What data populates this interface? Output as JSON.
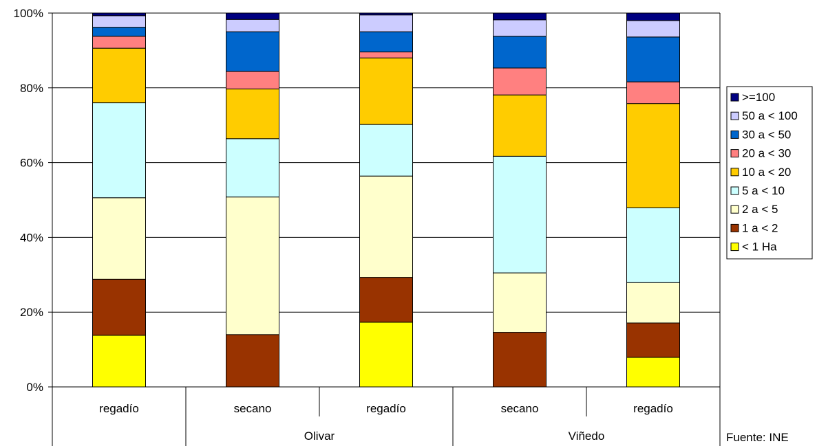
{
  "chart_data": {
    "type": "bar",
    "stacked": true,
    "percent": true,
    "title": "",
    "xlabel": "",
    "ylabel": "",
    "ylim": [
      0,
      100
    ],
    "y_ticks": [
      "0%",
      "20%",
      "40%",
      "60%",
      "80%",
      "100%"
    ],
    "grid": true,
    "legend_position": "right",
    "categories": [
      "regadío",
      "secano",
      "regadío",
      "secano",
      "regadío"
    ],
    "groups": [
      {
        "label": "",
        "categories": [
          "regadío"
        ]
      },
      {
        "label": "Olivar",
        "categories": [
          "secano",
          "regadío"
        ]
      },
      {
        "label": "Viñedo",
        "categories": [
          "secano",
          "regadío"
        ]
      }
    ],
    "series": [
      {
        "name": "< 1 Ha",
        "color": "#FFFF00",
        "values": [
          13.8,
          0,
          17.3,
          0,
          7.9
        ]
      },
      {
        "name": "1  a < 2",
        "color": "#993300",
        "values": [
          15.0,
          14.0,
          12.0,
          14.6,
          9.2
        ]
      },
      {
        "name": "2 a < 5",
        "color": "#FFFFCC",
        "values": [
          21.8,
          36.8,
          27.1,
          15.9,
          10.8
        ]
      },
      {
        "name": "5 a < 10",
        "color": "#CCFFFF",
        "values": [
          25.4,
          15.6,
          13.8,
          31.2,
          20.0
        ]
      },
      {
        "name": "10 a < 20",
        "color": "#FFCC00",
        "values": [
          14.6,
          13.3,
          17.8,
          16.4,
          27.9
        ]
      },
      {
        "name": "20 a < 30",
        "color": "#FF8080",
        "values": [
          3.2,
          4.7,
          1.6,
          7.2,
          5.8
        ]
      },
      {
        "name": "30 a < 50",
        "color": "#0066CC",
        "values": [
          2.4,
          10.6,
          5.4,
          8.5,
          12.0
        ]
      },
      {
        "name": "50 a < 100",
        "color": "#CCCCFF",
        "values": [
          3.1,
          3.3,
          4.5,
          4.4,
          4.4
        ]
      },
      {
        "name": ">=100",
        "color": "#000080",
        "values": [
          0.7,
          1.7,
          0.5,
          1.8,
          2.0
        ]
      }
    ]
  },
  "source_note": "Fuente:  INE"
}
